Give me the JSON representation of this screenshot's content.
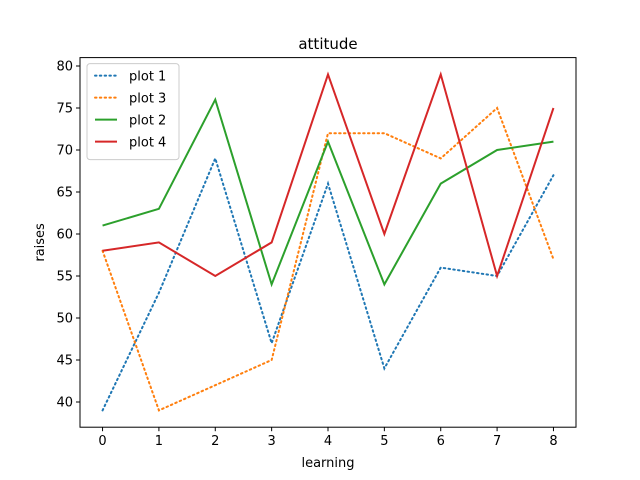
{
  "chart_data": {
    "type": "line",
    "title": "attitude",
    "xlabel": "learning",
    "ylabel": "raises",
    "x": [
      0,
      1,
      2,
      3,
      4,
      5,
      6,
      7,
      8
    ],
    "xlim": [
      -0.4,
      8.4
    ],
    "ylim": [
      37.0,
      81.0
    ],
    "xticks": [
      0,
      1,
      2,
      3,
      4,
      5,
      6,
      7,
      8
    ],
    "yticks": [
      40,
      45,
      50,
      55,
      60,
      65,
      70,
      75,
      80
    ],
    "grid": false,
    "legend_position": "top-left",
    "series": [
      {
        "name": "plot 1",
        "color": "#1f77b4",
        "style": "dotted",
        "values": [
          39,
          53,
          69,
          47,
          66,
          44,
          56,
          55,
          67
        ]
      },
      {
        "name": "plot 3",
        "color": "#ff7f0e",
        "style": "dotted",
        "values": [
          58,
          39,
          42,
          45,
          72,
          72,
          69,
          75,
          57
        ]
      },
      {
        "name": "plot 2",
        "color": "#2ca02c",
        "style": "solid",
        "values": [
          61,
          63,
          76,
          54,
          71,
          54,
          66,
          70,
          71
        ]
      },
      {
        "name": "plot 4",
        "color": "#d62728",
        "style": "solid",
        "values": [
          58,
          59,
          55,
          59,
          79,
          60,
          79,
          55,
          75
        ]
      }
    ]
  }
}
